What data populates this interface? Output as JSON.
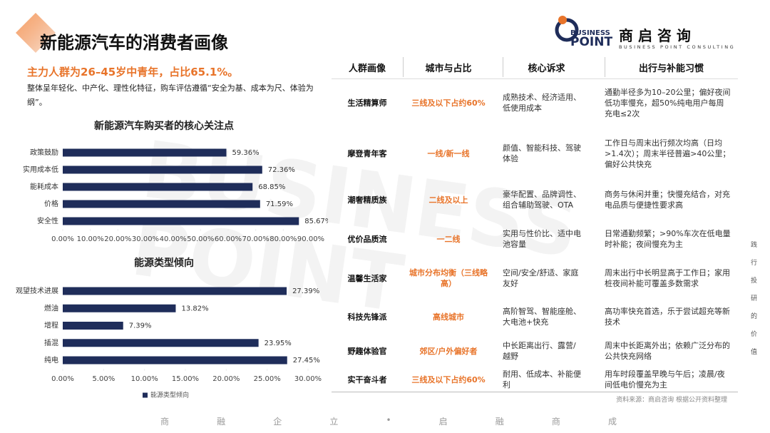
{
  "header": {
    "title": "新能源汽车的消费者画像",
    "logo": {
      "mark_top": "BUSINESS",
      "mark_bottom": "POINT",
      "name": "商 启 咨 询",
      "tagline": "BUSINESS POINT CONSULTING"
    }
  },
  "highlight": "主力人群为26–45岁中青年，占比65.1%。",
  "description": "整体呈年轻化、中产化、理性化特征，购车评估遵循“安全为基、成本为尺、体验为纲”。",
  "watermark": "BUSINESS POINT",
  "chart_data": [
    {
      "type": "barh",
      "title": "新能源汽车购买者的核心关注点",
      "categories": [
        "政策鼓励",
        "实用成本低",
        "能耗成本",
        "价格",
        "安全性"
      ],
      "values": [
        59.36,
        72.36,
        68.85,
        71.59,
        85.67
      ],
      "value_labels": [
        "59.36%",
        "72.36%",
        "68.85%",
        "71.59%",
        "85.67%"
      ],
      "color": "#1f2d5a",
      "xlim": [
        0,
        90
      ],
      "xticks": [
        {
          "value": 0,
          "label": "0.00%"
        },
        {
          "value": 10,
          "label": "10.00%"
        },
        {
          "value": 20,
          "label": "20.00%"
        },
        {
          "value": 30,
          "label": "30.00%"
        },
        {
          "value": 40,
          "label": "40.00%"
        },
        {
          "value": 50,
          "label": "50.00%"
        },
        {
          "value": 60,
          "label": "60.00%"
        },
        {
          "value": 70,
          "label": "70.00%"
        },
        {
          "value": 80,
          "label": "80.00%"
        },
        {
          "value": 90,
          "label": "90.00%"
        }
      ]
    },
    {
      "type": "barh",
      "title": "能源类型倾向",
      "categories": [
        "观望技术进展",
        "燃油",
        "增程",
        "插混",
        "纯电"
      ],
      "series": [
        {
          "name": "能源类型倾向",
          "color": "#1f2d5a",
          "values": [
            27.39,
            13.82,
            7.39,
            23.95,
            27.45
          ],
          "value_labels": [
            "27.39%",
            "13.82%",
            "7.39%",
            "23.95%",
            "27.45%"
          ]
        }
      ],
      "xlim": [
        0,
        30
      ],
      "xticks": [
        {
          "value": 0,
          "label": "0.00%"
        },
        {
          "value": 5,
          "label": "5.00%"
        },
        {
          "value": 10,
          "label": "10.00%"
        },
        {
          "value": 15,
          "label": "15.00%"
        },
        {
          "value": 20,
          "label": "20.00%"
        },
        {
          "value": 25,
          "label": "25.00%"
        },
        {
          "value": 30,
          "label": "30.00%"
        }
      ]
    }
  ],
  "table": {
    "columns": [
      "人群画像",
      "城市与占比",
      "核心诉求",
      "出行与补能习惯"
    ],
    "rows": [
      [
        "生活精算师",
        "三线及以下占约60%",
        "成熟技术、经济适用、低使用成本",
        "通勤半径多为10–20公里；偏好夜间低功率慢充，超50%纯电用户每周充电≤2次"
      ],
      [
        "摩登青年客",
        "一线/新一线",
        "颜值、智能科技、驾驶体验",
        "工作日与周末出行频次均高（日均>1.4次）；周末半径普遍>40公里；偏好公共快充"
      ],
      [
        "潮奢精质族",
        "二线及以上",
        "豪华配置、品牌调性、组合辅助驾驶、OTA",
        "商务与休闲并重；快慢充结合，对充电品质与便捷性要求高"
      ],
      [
        "优价品质流",
        "一二线",
        "实用与性价比、适中电池容量",
        "日常通勤频繁；>90%车次在低电量时补能；夜间慢充为主"
      ],
      [
        "温馨生活家",
        "城市分布均衡（三线略高）",
        "空间/安全/舒适、家庭友好",
        "周末出行中长明显高于工作日；家用桩夜间补能可覆盖多数需求"
      ],
      [
        "科技先锋派",
        "高线城市",
        "高阶智驾、智能座舱、大电池+快充",
        "高功率快充首选，乐于尝试超充等新技术"
      ],
      [
        "野趣体验官",
        "郊区/户外偏好者",
        "中长距离出行、露营/越野",
        "周末中长距离外出；依赖广泛分布的公共快充网络"
      ],
      [
        "实干奋斗者",
        "三线及以下占约60%",
        "耐用、低成本、补能便利",
        "用车时段覆盖早晚与午后；凌晨/夜间低电价慢充为主"
      ]
    ]
  },
  "source": "资料来源：商启咨询 根据公开资料整理",
  "side_text": "践行投研的价值",
  "footer": [
    "商",
    "融",
    "企",
    "立",
    "•",
    "启",
    "融",
    "商",
    "成"
  ]
}
